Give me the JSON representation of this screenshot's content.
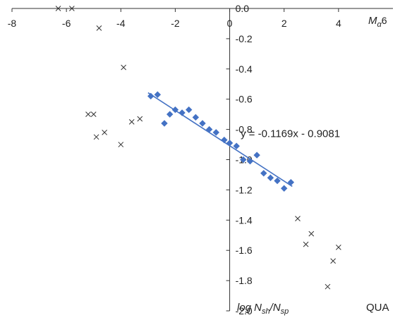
{
  "chart_data": {
    "type": "scatter",
    "xlim": [
      -8,
      6
    ],
    "ylim": [
      -2.0,
      0.0
    ],
    "x_ticks": [
      -8,
      -6,
      -4,
      -2,
      0,
      2,
      4
    ],
    "y_ticks": [
      0.0,
      -0.2,
      -0.4,
      -0.6,
      -0.8,
      -1.0,
      -1.2,
      -1.4,
      -1.6,
      -1.8,
      -2.0
    ],
    "x_tick_labels": [
      "-8",
      "-6",
      "-4",
      "-2",
      "0",
      "2",
      "4"
    ],
    "y_tick_labels": [
      "0.0",
      "-0.2",
      "-0.4",
      "-0.6",
      "-0.8",
      "-1.0",
      "-1.2",
      "-1.4",
      "-1.6",
      "-1.8",
      "-2.0"
    ],
    "x_axis_label": "M",
    "x_axis_label_sub": "α",
    "x_axis_end_label": "6",
    "y_axis_label": {
      "prefix": "log N",
      "sub1": "sh",
      "mid": "/N",
      "sub2": "sp"
    },
    "corner_label": "QUA",
    "grid": false,
    "series": [
      {
        "marker": "diamond",
        "color": "#4472C4",
        "points": [
          [
            -2.9,
            -0.58
          ],
          [
            -2.65,
            -0.57
          ],
          [
            -2.4,
            -0.76
          ],
          [
            -2.2,
            -0.7
          ],
          [
            -2.0,
            -0.67
          ],
          [
            -1.75,
            -0.69
          ],
          [
            -1.5,
            -0.67
          ],
          [
            -1.25,
            -0.72
          ],
          [
            -1.0,
            -0.76
          ],
          [
            -0.75,
            -0.8
          ],
          [
            -0.5,
            -0.82
          ],
          [
            -0.2,
            -0.87
          ],
          [
            0.0,
            -0.89
          ],
          [
            0.25,
            -0.91
          ],
          [
            0.5,
            -1.0
          ],
          [
            0.75,
            -1.01
          ],
          [
            1.0,
            -0.97
          ],
          [
            1.25,
            -1.09
          ],
          [
            1.5,
            -1.12
          ],
          [
            1.75,
            -1.14
          ],
          [
            2.0,
            -1.19
          ],
          [
            2.25,
            -1.15
          ]
        ]
      },
      {
        "marker": "cross",
        "color": "#333333",
        "points": [
          [
            -6.3,
            0.0
          ],
          [
            -5.8,
            0.0
          ],
          [
            -4.8,
            -0.13
          ],
          [
            -3.9,
            -0.39
          ],
          [
            -5.2,
            -0.7
          ],
          [
            -5.0,
            -0.7
          ],
          [
            -4.6,
            -0.82
          ],
          [
            -4.0,
            -0.9
          ],
          [
            -3.6,
            -0.75
          ],
          [
            -3.3,
            -0.73
          ],
          [
            -4.9,
            -0.85
          ],
          [
            2.5,
            -1.39
          ],
          [
            2.8,
            -1.56
          ],
          [
            3.0,
            -1.49
          ],
          [
            3.6,
            -1.84
          ],
          [
            3.8,
            -1.67
          ],
          [
            4.0,
            -1.58
          ]
        ]
      }
    ],
    "trendline": {
      "slope": -0.1169,
      "intercept": -0.9081,
      "x_range": [
        -3.0,
        2.3
      ],
      "color": "#4472C4",
      "equation": "y = -0.1169x - 0.9081"
    }
  }
}
